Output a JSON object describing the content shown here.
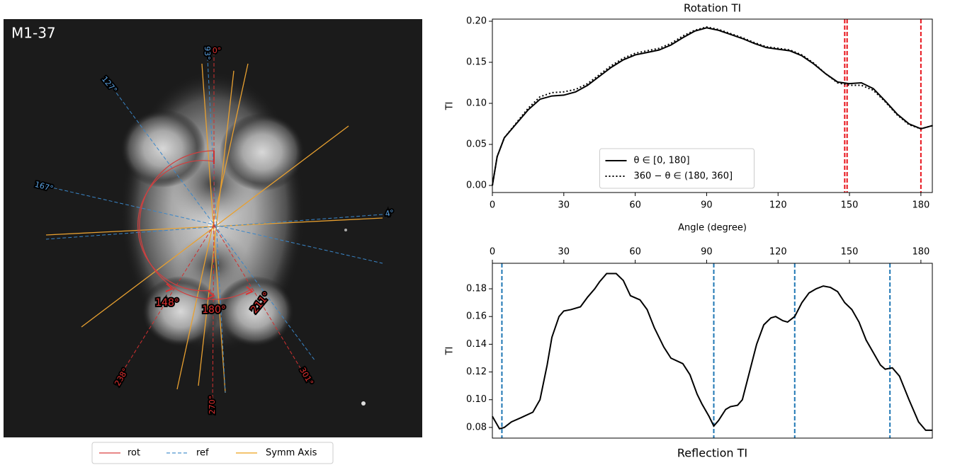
{
  "image_panel": {
    "title": "M1-37",
    "ref_labels": [
      "93°",
      "127°",
      "167°",
      "4°"
    ],
    "rot_labels": [
      "0°",
      "148°",
      "180°",
      "211°",
      "238°",
      "270°",
      "301°"
    ],
    "legend": [
      "rot",
      "ref",
      "Symm Axis"
    ]
  },
  "chart_data": [
    {
      "type": "line",
      "title": "Rotation TI",
      "title_position": "top",
      "xlabel": "Angle (degree)",
      "ylabel": "TI",
      "x": [
        0,
        2,
        5,
        10,
        15,
        20,
        25,
        30,
        35,
        40,
        45,
        50,
        55,
        60,
        65,
        70,
        75,
        80,
        85,
        90,
        95,
        100,
        105,
        110,
        115,
        120,
        125,
        130,
        135,
        140,
        145,
        150,
        155,
        160,
        165,
        170,
        175,
        180,
        185
      ],
      "series": [
        {
          "name": "θ ∈ [0, 180]",
          "color": "#000000",
          "linestyle": "solid",
          "values": [
            0,
            0.035,
            0.058,
            0.075,
            0.092,
            0.105,
            0.109,
            0.11,
            0.114,
            0.122,
            0.133,
            0.144,
            0.153,
            0.159,
            0.162,
            0.165,
            0.171,
            0.18,
            0.188,
            0.192,
            0.189,
            0.184,
            0.179,
            0.173,
            0.168,
            0.166,
            0.164,
            0.158,
            0.148,
            0.136,
            0.126,
            0.124,
            0.125,
            0.118,
            0.103,
            0.087,
            0.075,
            0.069,
            0.073
          ]
        },
        {
          "name": "360 − θ ∈ (180, 360]",
          "color": "#000000",
          "linestyle": "dotted",
          "values": [
            0,
            0.035,
            0.058,
            0.076,
            0.094,
            0.108,
            0.113,
            0.114,
            0.117,
            0.124,
            0.135,
            0.146,
            0.155,
            0.161,
            0.164,
            0.167,
            0.173,
            0.182,
            0.189,
            0.193,
            0.19,
            0.185,
            0.18,
            0.174,
            0.169,
            0.167,
            0.165,
            0.159,
            0.149,
            0.136,
            0.125,
            0.122,
            0.122,
            0.116,
            0.102,
            0.086,
            0.074,
            0.069,
            0.073
          ]
        }
      ],
      "vlines": {
        "x": [
          148,
          149,
          180
        ],
        "color": "#e8141c",
        "linestyle": "dashed"
      },
      "xlim": [
        0,
        184.8
      ],
      "xticks": [
        0,
        30,
        60,
        90,
        120,
        150,
        180
      ],
      "xaxis_position": "bottom",
      "ylim": [
        -0.0086,
        0.2026
      ],
      "yticks": [
        {
          "value": 0,
          "label": "0.00"
        },
        0.05,
        {
          "value": 0.1,
          "label": "0.10"
        },
        0.15,
        {
          "value": 0.2,
          "label": "0.20"
        }
      ],
      "legend": "lower center"
    },
    {
      "type": "line",
      "title": "Reflection TI",
      "title_position": "bottom",
      "ylabel": "TI",
      "x": [
        0,
        3,
        5,
        8,
        12,
        17,
        20,
        23,
        25,
        28,
        30,
        33,
        37,
        40,
        43,
        45,
        48,
        52,
        55,
        58,
        62,
        65,
        68,
        72,
        75,
        80,
        83,
        86,
        88,
        91,
        93,
        95,
        98,
        100,
        103,
        105,
        108,
        111,
        114,
        117,
        119,
        122,
        124,
        127,
        130,
        133,
        136,
        139,
        142,
        145,
        148,
        151,
        154,
        157,
        160,
        163,
        165,
        168,
        171,
        175,
        179,
        182,
        184.8
      ],
      "series": [
        {
          "color": "#000000",
          "linestyle": "solid",
          "values": [
            0.088,
            0.079,
            0.08,
            0.084,
            0.087,
            0.091,
            0.1,
            0.125,
            0.145,
            0.16,
            0.164,
            0.165,
            0.167,
            0.174,
            0.18,
            0.185,
            0.191,
            0.191,
            0.186,
            0.175,
            0.172,
            0.165,
            0.152,
            0.138,
            0.13,
            0.126,
            0.118,
            0.104,
            0.097,
            0.088,
            0.081,
            0.085,
            0.093,
            0.095,
            0.096,
            0.1,
            0.12,
            0.14,
            0.154,
            0.159,
            0.16,
            0.157,
            0.156,
            0.16,
            0.17,
            0.177,
            0.18,
            0.182,
            0.181,
            0.178,
            0.17,
            0.165,
            0.156,
            0.143,
            0.134,
            0.125,
            0.122,
            0.123,
            0.117,
            0.1,
            0.084,
            0.078,
            0.078
          ]
        }
      ],
      "vlines": {
        "x": [
          4,
          93,
          127,
          167
        ],
        "color": "#1f77b4",
        "linestyle": "dashed"
      },
      "xlim": [
        0,
        184.8
      ],
      "xticks": [
        0,
        30,
        60,
        90,
        120,
        150,
        180
      ],
      "xaxis_position": "top",
      "ylim": [
        0.0723,
        0.1984
      ],
      "yticks": [
        0.08,
        {
          "value": 0.1,
          "label": "0.10"
        },
        0.12,
        0.14,
        0.16,
        0.18
      ]
    }
  ]
}
